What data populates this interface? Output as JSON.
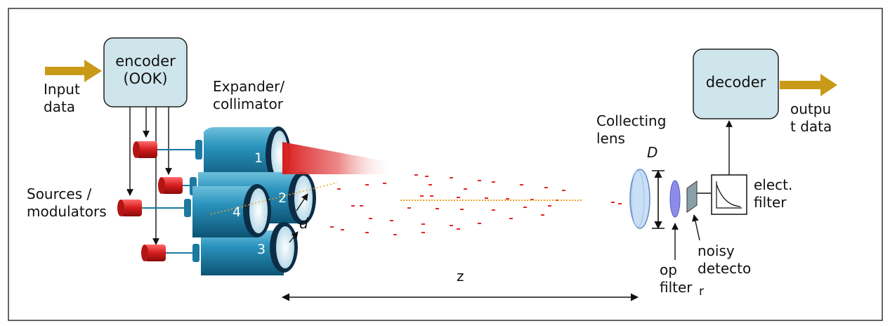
{
  "labels": {
    "encoder": "encoder\n(OOK)",
    "decoder": "decoder",
    "input_data": "Input\ndata",
    "output_data": "outpu\nt data",
    "expander": "Expander/\ncollimator",
    "sources": "Sources /\nmodulators",
    "collecting_lens": "Collecting\nlens",
    "D": "D",
    "d": "d",
    "z": "z",
    "elect_filter": "elect.\nfilter",
    "noisy_detector_a": "noisy\ndetecto",
    "noisy_detector_b": "r",
    "op_filter": "op\nfilter",
    "beam_1": "1",
    "beam_2": "2",
    "beam_3": "3",
    "beam_4": "4"
  },
  "colors": {
    "box_fill": "#cfe5ec",
    "arrow_gold": "#c99a18",
    "cylinder": "#1a7aa0",
    "source_red": "#d42020",
    "beam_red": "#e02828",
    "lens_fill": "#c9dff5",
    "op_filter_fill": "#8c8ce8"
  }
}
